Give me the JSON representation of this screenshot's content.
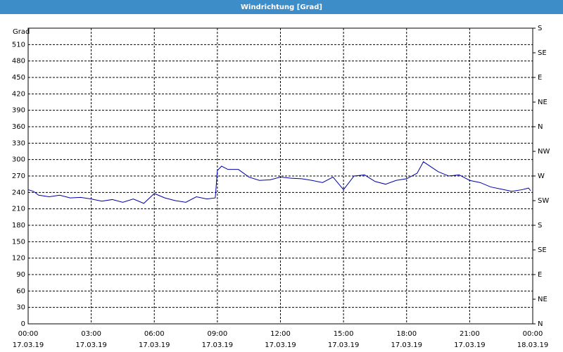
{
  "chart_data": {
    "type": "line",
    "title": "Windrichtung [Grad]",
    "y_label": "Grad",
    "x": [
      0,
      0.25,
      0.5,
      1,
      1.5,
      2,
      2.5,
      3,
      3.5,
      4,
      4.5,
      5,
      5.5,
      6,
      6.5,
      7,
      7.5,
      8,
      8.5,
      8.9,
      9,
      9.2,
      9.5,
      10,
      10.5,
      11,
      11.5,
      12,
      12.5,
      13,
      13.5,
      14,
      14.5,
      15,
      15.5,
      16,
      16.5,
      17,
      17.5,
      18,
      18.5,
      18.8,
      19.5,
      20,
      20.5,
      21,
      21.5,
      22,
      22.5,
      23,
      23.5,
      23.8,
      23.9
    ],
    "series": [
      {
        "name": "Windrichtung",
        "color": "#0000a8",
        "values": [
          245,
          242,
          235,
          232,
          235,
          230,
          231,
          228,
          224,
          227,
          222,
          228,
          220,
          238,
          230,
          225,
          222,
          232,
          228,
          230,
          280,
          288,
          282,
          282,
          268,
          262,
          263,
          268,
          266,
          265,
          262,
          258,
          268,
          245,
          270,
          272,
          260,
          255,
          262,
          265,
          275,
          296,
          278,
          270,
          272,
          262,
          258,
          250,
          246,
          242,
          245,
          248,
          243
        ]
      }
    ],
    "xlim": [
      0,
      24
    ],
    "xticks": [
      {
        "value": 0,
        "label": "00:00",
        "date": "17.03.19"
      },
      {
        "value": 3,
        "label": "03:00",
        "date": "17.03.19"
      },
      {
        "value": 6,
        "label": "06:00",
        "date": "17.03.19"
      },
      {
        "value": 9,
        "label": "09:00",
        "date": "17.03.19"
      },
      {
        "value": 12,
        "label": "12:00",
        "date": "17.03.19"
      },
      {
        "value": 15,
        "label": "15:00",
        "date": "17.03.19"
      },
      {
        "value": 18,
        "label": "18:00",
        "date": "17.03.19"
      },
      {
        "value": 21,
        "label": "21:00",
        "date": "17.03.19"
      },
      {
        "value": 24,
        "label": "00:00",
        "date": "18.03.19"
      }
    ],
    "ylim": [
      0,
      540
    ],
    "yticks": [
      0,
      30,
      60,
      90,
      120,
      150,
      180,
      210,
      240,
      270,
      300,
      330,
      360,
      390,
      420,
      450,
      480,
      510
    ],
    "y2lim": [
      0,
      540
    ],
    "y2ticks": [
      {
        "value": 0,
        "label": "N"
      },
      {
        "value": 45,
        "label": "NE"
      },
      {
        "value": 90,
        "label": "E"
      },
      {
        "value": 135,
        "label": "SE"
      },
      {
        "value": 180,
        "label": "S"
      },
      {
        "value": 225,
        "label": "SW"
      },
      {
        "value": 270,
        "label": "W"
      },
      {
        "value": 315,
        "label": "NW"
      },
      {
        "value": 360,
        "label": "N"
      },
      {
        "value": 405,
        "label": "NE"
      },
      {
        "value": 450,
        "label": "E"
      },
      {
        "value": 495,
        "label": "SE"
      },
      {
        "value": 540,
        "label": "S"
      }
    ],
    "grid": true
  }
}
